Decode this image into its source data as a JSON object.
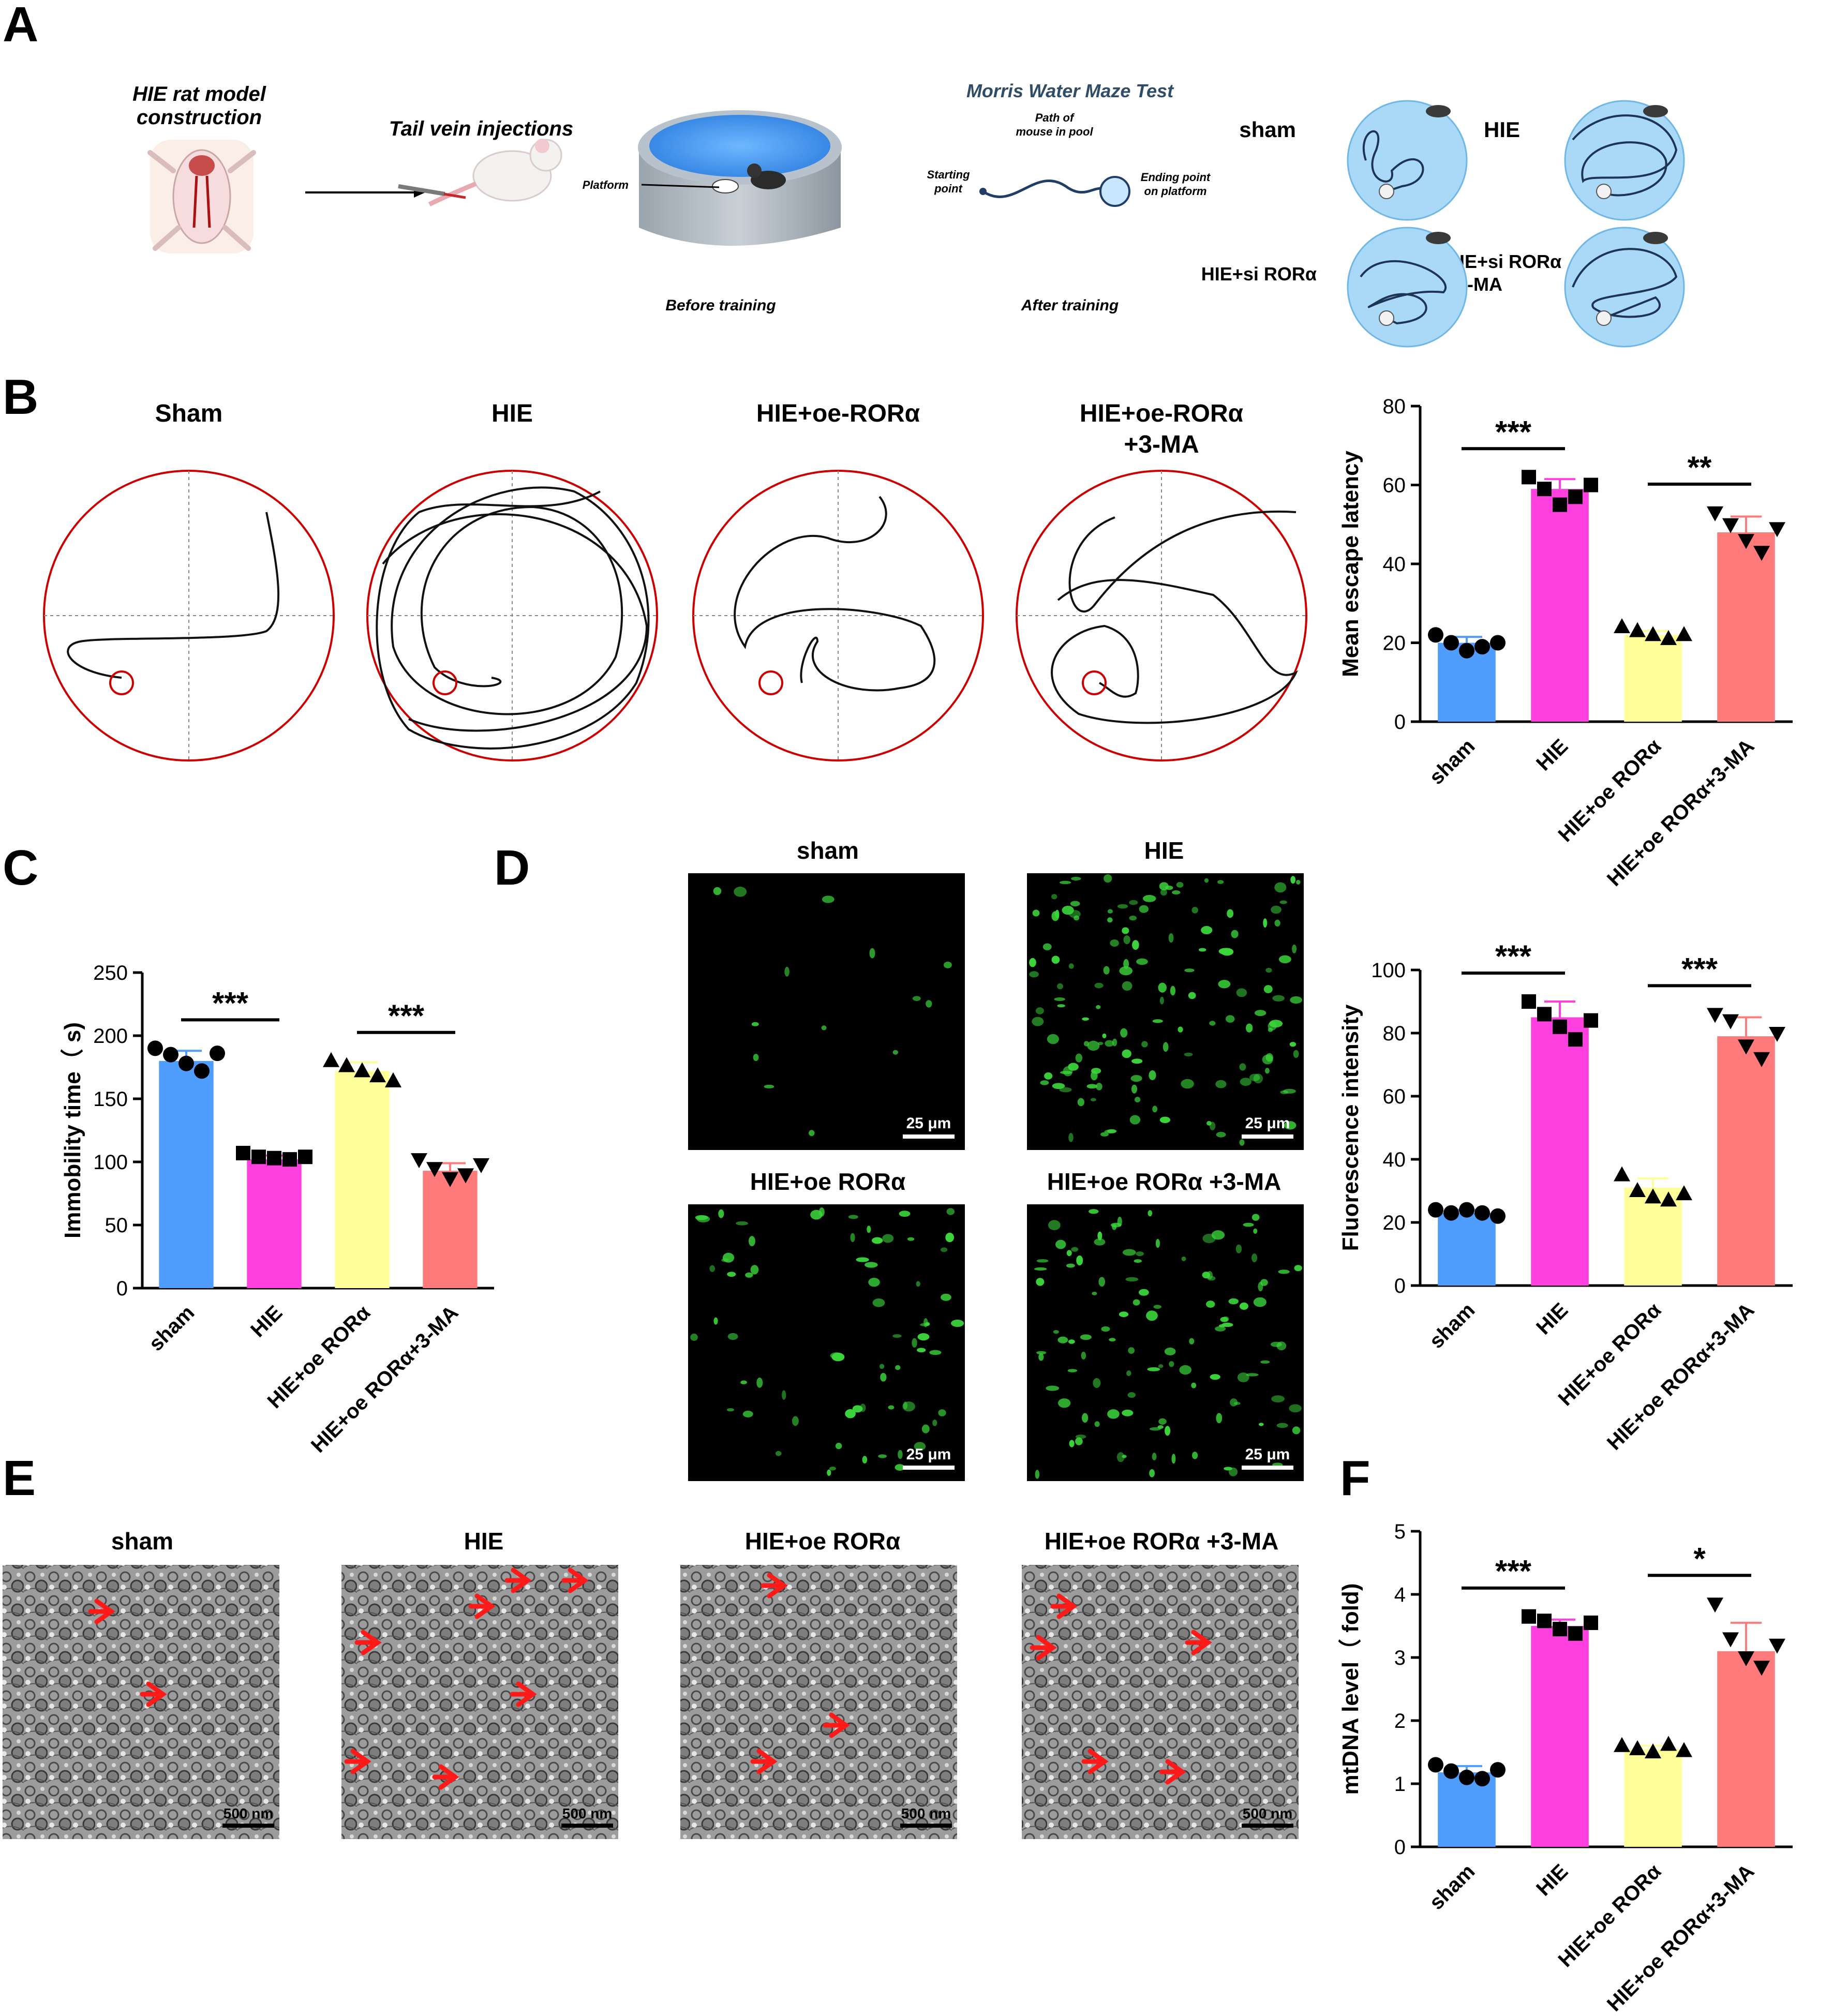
{
  "panel_letters": [
    "A",
    "B",
    "C",
    "D",
    "E",
    "F"
  ],
  "panel_a": {
    "model_label_1": "HIE rat model",
    "model_label_2": "construction",
    "injection_label": "Tail vein injections",
    "platform_label": "Platform",
    "before_label": "Before training",
    "mwm_title": "Morris Water Maze Test",
    "path_label_1": "Path of",
    "path_label_2": "mouse in pool",
    "start_label_1": "Starting",
    "start_label_2": "point",
    "end_label_1": "Ending point",
    "end_label_2": "on platform",
    "after_label": "After training",
    "groups": [
      "sham",
      "HIE",
      "HIE+si RORα",
      "HIE+si RORα",
      "+3-MA"
    ]
  },
  "panel_b": {
    "traces": [
      {
        "label_1": "Sham",
        "label_2": ""
      },
      {
        "label_1": "HIE",
        "label_2": ""
      },
      {
        "label_1": "HIE+oe-RORα",
        "label_2": ""
      },
      {
        "label_1": "HIE+oe-RORα",
        "label_2": "+3-MA"
      }
    ]
  },
  "panel_d": {
    "titles": [
      "sham",
      "HIE",
      "HIE+oe RORα",
      "HIE+oe RORα +3-MA"
    ],
    "scale_label": "25 μm"
  },
  "panel_e": {
    "titles": [
      "sham",
      "HIE",
      "HIE+oe RORα",
      "HIE+oe RORα +3-MA"
    ],
    "scale_label": "500 nm"
  },
  "colors": {
    "sham": "#4f9dff",
    "hie": "#ff3fe0",
    "oe": "#ffff99",
    "oe_3ma": "#ff7b7b",
    "trace_circle": "#cc0000",
    "fluor": "#3bd63b",
    "arrow": "#ff1a1a"
  },
  "chart_data": [
    {
      "id": "B",
      "type": "bar",
      "ylabel": "Mean escape latency",
      "ylim": [
        0,
        80
      ],
      "yticks": [
        0,
        20,
        40,
        60,
        80
      ],
      "categories": [
        "sham",
        "HIE",
        "HIE+oe RORα",
        "HIE+oe RORα+3-MA"
      ],
      "values": [
        20,
        59,
        22,
        48
      ],
      "errors": [
        1.5,
        2.5,
        1,
        4
      ],
      "points": [
        [
          22,
          20,
          18,
          19,
          20
        ],
        [
          62,
          59,
          55,
          57,
          60
        ],
        [
          24,
          23,
          22,
          21,
          22
        ],
        [
          53,
          50,
          46,
          43,
          49
        ]
      ],
      "markers": [
        "circle",
        "square",
        "triangle-up",
        "triangle-down"
      ],
      "significance": [
        {
          "from": 0,
          "to": 1,
          "text": "***"
        },
        {
          "from": 2,
          "to": 3,
          "text": "**"
        }
      ]
    },
    {
      "id": "C",
      "type": "bar",
      "ylabel": "Immobility time（ s)",
      "ylim": [
        0,
        250
      ],
      "yticks": [
        0,
        50,
        100,
        150,
        200,
        250
      ],
      "categories": [
        "sham",
        "HIE",
        "HIE+oe RORα",
        "HIE+oe RORα+3-MA"
      ],
      "values": [
        180,
        102,
        172,
        93
      ],
      "errors": [
        8,
        3,
        7,
        6
      ],
      "points": [
        [
          190,
          185,
          178,
          172,
          186
        ],
        [
          107,
          104,
          103,
          102,
          104
        ],
        [
          180,
          176,
          172,
          168,
          164
        ],
        [
          102,
          95,
          87,
          90,
          98
        ]
      ],
      "markers": [
        "circle",
        "square",
        "triangle-up",
        "triangle-down"
      ],
      "significance": [
        {
          "from": 0,
          "to": 1,
          "text": "***"
        },
        {
          "from": 2,
          "to": 3,
          "text": "***"
        }
      ]
    },
    {
      "id": "D",
      "type": "bar",
      "ylabel": "Fluorescence intensity",
      "ylim": [
        0,
        100
      ],
      "yticks": [
        0,
        20,
        40,
        60,
        80,
        100
      ],
      "categories": [
        "sham",
        "HIE",
        "HIE+oe RORα",
        "HIE+oe RORα+3-MA"
      ],
      "values": [
        23,
        85,
        31,
        79
      ],
      "errors": [
        1,
        5,
        3,
        6
      ],
      "points": [
        [
          24,
          23,
          24,
          23,
          22
        ],
        [
          90,
          86,
          82,
          78,
          84
        ],
        [
          35,
          30,
          28,
          27,
          29
        ],
        [
          86,
          84,
          76,
          72,
          80
        ]
      ],
      "markers": [
        "circle",
        "square",
        "triangle-up",
        "triangle-down"
      ],
      "significance": [
        {
          "from": 0,
          "to": 1,
          "text": "***"
        },
        {
          "from": 2,
          "to": 3,
          "text": "***"
        }
      ]
    },
    {
      "id": "F",
      "type": "bar",
      "ylabel": "mtDNA level（ fold)",
      "ylim": [
        0,
        5
      ],
      "yticks": [
        0,
        1,
        2,
        3,
        4,
        5
      ],
      "categories": [
        "sham",
        "HIE",
        "HIE+oe RORα",
        "HIE+oe RORα+3-MA"
      ],
      "values": [
        1.18,
        3.5,
        1.55,
        3.1
      ],
      "errors": [
        0.1,
        0.1,
        0.05,
        0.45
      ],
      "points": [
        [
          1.3,
          1.2,
          1.1,
          1.08,
          1.22
        ],
        [
          3.65,
          3.58,
          3.45,
          3.38,
          3.55
        ],
        [
          1.6,
          1.55,
          1.5,
          1.62,
          1.52
        ],
        [
          3.85,
          3.3,
          3.0,
          2.85,
          3.2
        ]
      ],
      "markers": [
        "circle",
        "square",
        "triangle-up",
        "triangle-down"
      ],
      "significance": [
        {
          "from": 0,
          "to": 1,
          "text": "***"
        },
        {
          "from": 2,
          "to": 3,
          "text": "*"
        }
      ]
    }
  ]
}
